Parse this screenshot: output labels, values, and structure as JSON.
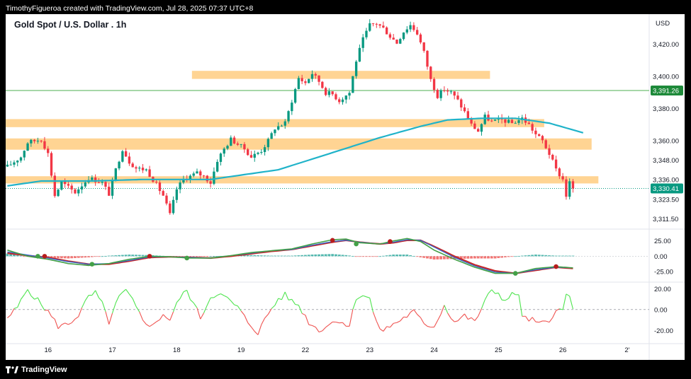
{
  "header": {
    "attribution": "TimothyFigueroa created with TradingView.com, Jul 28, 2025 07:37 UTC+8"
  },
  "footer": {
    "brand": "TradingView"
  },
  "chart_data": {
    "type": "candlestick",
    "title": "Gold Spot / U.S. Dollar . 1h",
    "currency_label": "USD",
    "price_axis": {
      "range": [
        3306,
        3437
      ],
      "ticks": [
        {
          "value": 3420,
          "label": "3,420.00"
        },
        {
          "value": 3400,
          "label": "3,400.00"
        },
        {
          "value": 3380,
          "label": "3,380.00"
        },
        {
          "value": 3360,
          "label": "3,360.00"
        },
        {
          "value": 3348,
          "label": "3,348.00"
        },
        {
          "value": 3336,
          "label": "3,336.00"
        },
        {
          "value": 3323.5,
          "label": "3,323.50"
        },
        {
          "value": 3311.5,
          "label": "3,311.50"
        }
      ]
    },
    "price_badges": [
      {
        "value": 3391.26,
        "label": "3,391.26",
        "color": "#1e8a3a"
      },
      {
        "value": 3330.41,
        "label": "3,330.41",
        "color": "#089981"
      }
    ],
    "horizontal_lines": [
      {
        "value": 3391.26,
        "color": "#4caf50"
      },
      {
        "value": 3330.41,
        "color": "#089981",
        "dotted": true
      }
    ],
    "zones": [
      {
        "from": 3398.5,
        "to": 3403.5,
        "start_index": 55,
        "end_index": 142
      },
      {
        "from": 3368.5,
        "to": 3373.5,
        "start_index": 0,
        "end_index": 158
      },
      {
        "from": 3354.5,
        "to": 3361.5,
        "start_index": 0,
        "end_index": 172
      },
      {
        "from": 3333.5,
        "to": 3338.0,
        "start_index": 0,
        "end_index": 174
      }
    ],
    "x_axis": {
      "ticks": [
        {
          "index": 12,
          "label": "16"
        },
        {
          "index": 31,
          "label": "17"
        },
        {
          "index": 50,
          "label": "18"
        },
        {
          "index": 69,
          "label": "19"
        },
        {
          "index": 88,
          "label": "22"
        },
        {
          "index": 107,
          "label": "23"
        },
        {
          "index": 126,
          "label": "24"
        },
        {
          "index": 145,
          "label": "25"
        },
        {
          "index": 164,
          "label": "26"
        },
        {
          "index": 183,
          "label": "2'"
        }
      ]
    },
    "bar_count": 190,
    "last_index": 167,
    "ohlc_anchors": [
      [
        0,
        3344
      ],
      [
        4,
        3350
      ],
      [
        6,
        3359
      ],
      [
        10,
        3361
      ],
      [
        12,
        3352
      ],
      [
        14,
        3326
      ],
      [
        16,
        3334
      ],
      [
        20,
        3328
      ],
      [
        24,
        3337
      ],
      [
        28,
        3334
      ],
      [
        30,
        3327
      ],
      [
        32,
        3342
      ],
      [
        34,
        3355
      ],
      [
        36,
        3347
      ],
      [
        38,
        3343
      ],
      [
        41,
        3342
      ],
      [
        43,
        3336
      ],
      [
        46,
        3326
      ],
      [
        48,
        3314
      ],
      [
        50,
        3330
      ],
      [
        52,
        3336
      ],
      [
        56,
        3340
      ],
      [
        58,
        3338
      ],
      [
        60,
        3334
      ],
      [
        62,
        3348
      ],
      [
        64,
        3355
      ],
      [
        66,
        3361
      ],
      [
        70,
        3355
      ],
      [
        72,
        3350
      ],
      [
        75,
        3354
      ],
      [
        77,
        3360
      ],
      [
        79,
        3368
      ],
      [
        82,
        3371
      ],
      [
        84,
        3385
      ],
      [
        86,
        3399
      ],
      [
        88,
        3396
      ],
      [
        90,
        3402
      ],
      [
        92,
        3397
      ],
      [
        94,
        3390
      ],
      [
        96,
        3389
      ],
      [
        98,
        3385
      ],
      [
        101,
        3390
      ],
      [
        103,
        3410
      ],
      [
        105,
        3423
      ],
      [
        107,
        3432
      ],
      [
        109,
        3433
      ],
      [
        111,
        3430
      ],
      [
        113,
        3425
      ],
      [
        115,
        3421
      ],
      [
        117,
        3428
      ],
      [
        119,
        3432
      ],
      [
        121,
        3427
      ],
      [
        123,
        3415
      ],
      [
        125,
        3398
      ],
      [
        127,
        3388
      ],
      [
        129,
        3392
      ],
      [
        131,
        3390
      ],
      [
        133,
        3385
      ],
      [
        135,
        3378
      ],
      [
        137,
        3370
      ],
      [
        139,
        3366
      ],
      [
        141,
        3375
      ],
      [
        143,
        3372
      ],
      [
        146,
        3373
      ],
      [
        149,
        3371
      ],
      [
        152,
        3374
      ],
      [
        154,
        3370
      ],
      [
        156,
        3364
      ],
      [
        158,
        3360
      ],
      [
        160,
        3352
      ],
      [
        162,
        3342
      ],
      [
        164,
        3336
      ],
      [
        165,
        3326
      ],
      [
        166,
        3334
      ],
      [
        167,
        3330.41
      ]
    ],
    "moving_average": {
      "color": "#20b3c9",
      "anchors": [
        [
          0,
          3332
        ],
        [
          10,
          3335
        ],
        [
          25,
          3335
        ],
        [
          40,
          3336
        ],
        [
          60,
          3336
        ],
        [
          80,
          3342
        ],
        [
          95,
          3352
        ],
        [
          110,
          3362
        ],
        [
          122,
          3369
        ],
        [
          130,
          3373
        ],
        [
          140,
          3374
        ],
        [
          150,
          3374
        ],
        [
          160,
          3371
        ],
        [
          170,
          3365
        ]
      ]
    },
    "macd_panel": {
      "ticks": [
        {
          "value": 25,
          "label": "25.00"
        },
        {
          "value": 0,
          "label": "0.00"
        },
        {
          "value": -25,
          "label": "-25.00"
        }
      ],
      "range": [
        -40,
        42
      ],
      "fast_line": {
        "color": "#43a047",
        "anchors": [
          [
            0,
            10
          ],
          [
            6,
            0
          ],
          [
            12,
            -5
          ],
          [
            18,
            -12
          ],
          [
            24,
            -15
          ],
          [
            30,
            -12
          ],
          [
            36,
            -5
          ],
          [
            42,
            0
          ],
          [
            48,
            -1
          ],
          [
            54,
            -3
          ],
          [
            60,
            -3
          ],
          [
            66,
            1
          ],
          [
            72,
            6
          ],
          [
            78,
            9
          ],
          [
            84,
            12
          ],
          [
            90,
            20
          ],
          [
            96,
            27
          ],
          [
            100,
            28
          ],
          [
            104,
            22
          ],
          [
            110,
            20
          ],
          [
            114,
            25
          ],
          [
            118,
            29
          ],
          [
            122,
            24
          ],
          [
            126,
            10
          ],
          [
            132,
            -5
          ],
          [
            138,
            -18
          ],
          [
            144,
            -28
          ],
          [
            150,
            -28
          ],
          [
            156,
            -20
          ],
          [
            162,
            -17
          ],
          [
            167,
            -19
          ]
        ]
      },
      "slow_line": {
        "color": "#c62828",
        "anchors": [
          [
            0,
            5
          ],
          [
            6,
            1
          ],
          [
            12,
            -2
          ],
          [
            18,
            -8
          ],
          [
            24,
            -13
          ],
          [
            30,
            -13
          ],
          [
            36,
            -8
          ],
          [
            42,
            -2
          ],
          [
            48,
            -1
          ],
          [
            54,
            -2
          ],
          [
            60,
            -3
          ],
          [
            66,
            0
          ],
          [
            72,
            4
          ],
          [
            78,
            8
          ],
          [
            84,
            11
          ],
          [
            90,
            17
          ],
          [
            96,
            23
          ],
          [
            100,
            26
          ],
          [
            104,
            23
          ],
          [
            110,
            20
          ],
          [
            114,
            22
          ],
          [
            118,
            26
          ],
          [
            122,
            26
          ],
          [
            126,
            16
          ],
          [
            132,
            0
          ],
          [
            138,
            -14
          ],
          [
            144,
            -24
          ],
          [
            150,
            -28
          ],
          [
            156,
            -23
          ],
          [
            162,
            -18
          ],
          [
            167,
            -20
          ]
        ]
      },
      "signal_line": {
        "color": "#3366cc",
        "anchors": [
          [
            0,
            7
          ],
          [
            6,
            2
          ],
          [
            12,
            -3
          ],
          [
            18,
            -9
          ],
          [
            24,
            -13
          ],
          [
            30,
            -12
          ],
          [
            36,
            -7
          ],
          [
            42,
            -1
          ],
          [
            48,
            -1
          ],
          [
            54,
            -2
          ],
          [
            60,
            -3
          ],
          [
            66,
            1
          ],
          [
            72,
            5
          ],
          [
            78,
            9
          ],
          [
            84,
            11
          ],
          [
            90,
            18
          ],
          [
            96,
            24
          ],
          [
            100,
            26
          ],
          [
            104,
            23
          ],
          [
            110,
            20
          ],
          [
            114,
            23
          ],
          [
            118,
            27
          ],
          [
            122,
            26
          ],
          [
            126,
            15
          ],
          [
            132,
            -2
          ],
          [
            138,
            -16
          ],
          [
            144,
            -26
          ],
          [
            150,
            -28
          ],
          [
            156,
            -22
          ],
          [
            162,
            -18
          ],
          [
            167,
            -19
          ]
        ]
      },
      "cross_markers": [
        {
          "index": 9,
          "value": 0,
          "kind": "bull"
        },
        {
          "index": 11,
          "value": 0,
          "kind": "bear"
        },
        {
          "index": 25,
          "value": -13,
          "kind": "bull"
        },
        {
          "index": 42,
          "value": 0,
          "kind": "bear"
        },
        {
          "index": 53,
          "value": -3,
          "kind": "bull"
        },
        {
          "index": 96,
          "value": 26,
          "kind": "bear"
        },
        {
          "index": 103,
          "value": 20,
          "kind": "bull"
        },
        {
          "index": 113,
          "value": 24,
          "kind": "bear"
        },
        {
          "index": 150,
          "value": -28,
          "kind": "bull"
        },
        {
          "index": 162,
          "value": -17,
          "kind": "bear"
        }
      ]
    },
    "oscillator_panel": {
      "ticks": [
        {
          "value": 20,
          "label": "20.00"
        },
        {
          "value": 0,
          "label": "0.00"
        },
        {
          "value": -20,
          "label": "-20.00"
        }
      ],
      "range": [
        -30,
        25
      ],
      "pos_color": "#4ee44e",
      "neg_color": "#ef5350",
      "anchors": [
        [
          0,
          -8
        ],
        [
          3,
          2
        ],
        [
          6,
          20
        ],
        [
          8,
          12
        ],
        [
          10,
          5
        ],
        [
          12,
          -2
        ],
        [
          15,
          -16
        ],
        [
          18,
          -14
        ],
        [
          21,
          -5
        ],
        [
          24,
          12
        ],
        [
          26,
          16
        ],
        [
          28,
          5
        ],
        [
          30,
          -12
        ],
        [
          33,
          12
        ],
        [
          35,
          18
        ],
        [
          37,
          8
        ],
        [
          40,
          -10
        ],
        [
          43,
          -16
        ],
        [
          46,
          -4
        ],
        [
          48,
          -10
        ],
        [
          51,
          12
        ],
        [
          53,
          18
        ],
        [
          55,
          6
        ],
        [
          57,
          -8
        ],
        [
          60,
          12
        ],
        [
          62,
          16
        ],
        [
          65,
          10
        ],
        [
          68,
          2
        ],
        [
          71,
          -12
        ],
        [
          74,
          -22
        ],
        [
          77,
          -4
        ],
        [
          80,
          10
        ],
        [
          82,
          14
        ],
        [
          84,
          8
        ],
        [
          86,
          4
        ],
        [
          89,
          -12
        ],
        [
          92,
          -20
        ],
        [
          95,
          -14
        ],
        [
          98,
          -10
        ],
        [
          101,
          -16
        ],
        [
          103,
          12
        ],
        [
          105,
          14
        ],
        [
          107,
          10
        ],
        [
          109,
          -14
        ],
        [
          111,
          -20
        ],
        [
          114,
          -14
        ],
        [
          117,
          -8
        ],
        [
          120,
          -2
        ],
        [
          123,
          -14
        ],
        [
          126,
          -16
        ],
        [
          129,
          4
        ],
        [
          132,
          -12
        ],
        [
          135,
          -6
        ],
        [
          138,
          -12
        ],
        [
          141,
          8
        ],
        [
          143,
          18
        ],
        [
          145,
          16
        ],
        [
          147,
          8
        ],
        [
          149,
          14
        ],
        [
          151,
          16
        ],
        [
          152,
          -8
        ],
        [
          155,
          -10
        ],
        [
          157,
          -14
        ],
        [
          160,
          -12
        ],
        [
          162,
          2
        ],
        [
          164,
          -2
        ],
        [
          165,
          14
        ],
        [
          166,
          12
        ],
        [
          167,
          0
        ]
      ]
    }
  }
}
